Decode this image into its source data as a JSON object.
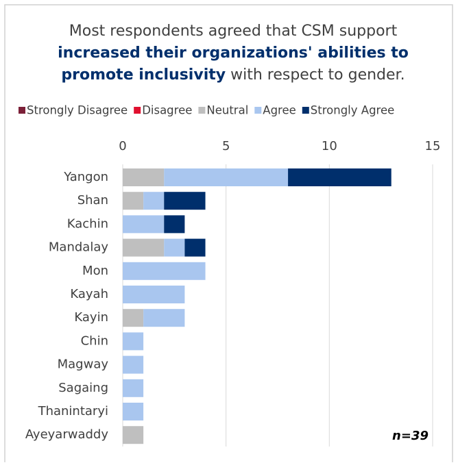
{
  "chart_data": {
    "type": "stacked-bar-horizontal",
    "title_parts": [
      {
        "text": "Most respondents agreed that CSM support",
        "bold": false
      },
      {
        "text": "increased their organizations' abilities to",
        "bold": true
      },
      {
        "text": "promote inclusivity",
        "bold": true
      },
      {
        "text": " with respect to gender.",
        "bold": false
      }
    ],
    "categories": [
      "Yangon",
      "Shan",
      "Kachin",
      "Mandalay",
      "Mon",
      "Kayah",
      "Kayin",
      "Chin",
      "Magway",
      "Sagaing",
      "Thanintaryi",
      "Ayeyarwaddy"
    ],
    "series": [
      {
        "name": "Strongly Disagree",
        "color": "#7b2038",
        "values": [
          0,
          0,
          0,
          0,
          0,
          0,
          0,
          0,
          0,
          0,
          0,
          0
        ]
      },
      {
        "name": "Disagree",
        "color": "#e0102f",
        "values": [
          0,
          0,
          0,
          0,
          0,
          0,
          0,
          0,
          0,
          0,
          0,
          0
        ]
      },
      {
        "name": "Neutral",
        "color": "#bfbfbf",
        "values": [
          2,
          1,
          0,
          2,
          0,
          0,
          1,
          0,
          0,
          0,
          0,
          1
        ]
      },
      {
        "name": "Agree",
        "color": "#a9c6ef",
        "values": [
          6,
          1,
          2,
          1,
          4,
          3,
          2,
          1,
          1,
          1,
          1,
          0
        ]
      },
      {
        "name": "Strongly Agree",
        "color": "#002f6c",
        "values": [
          5,
          2,
          1,
          1,
          0,
          0,
          0,
          0,
          0,
          0,
          0,
          0
        ]
      }
    ],
    "xlim": [
      0,
      15
    ],
    "xticks": [
      0,
      5,
      10,
      15
    ],
    "grid": true,
    "legend": "top",
    "annotation": "n=39"
  }
}
